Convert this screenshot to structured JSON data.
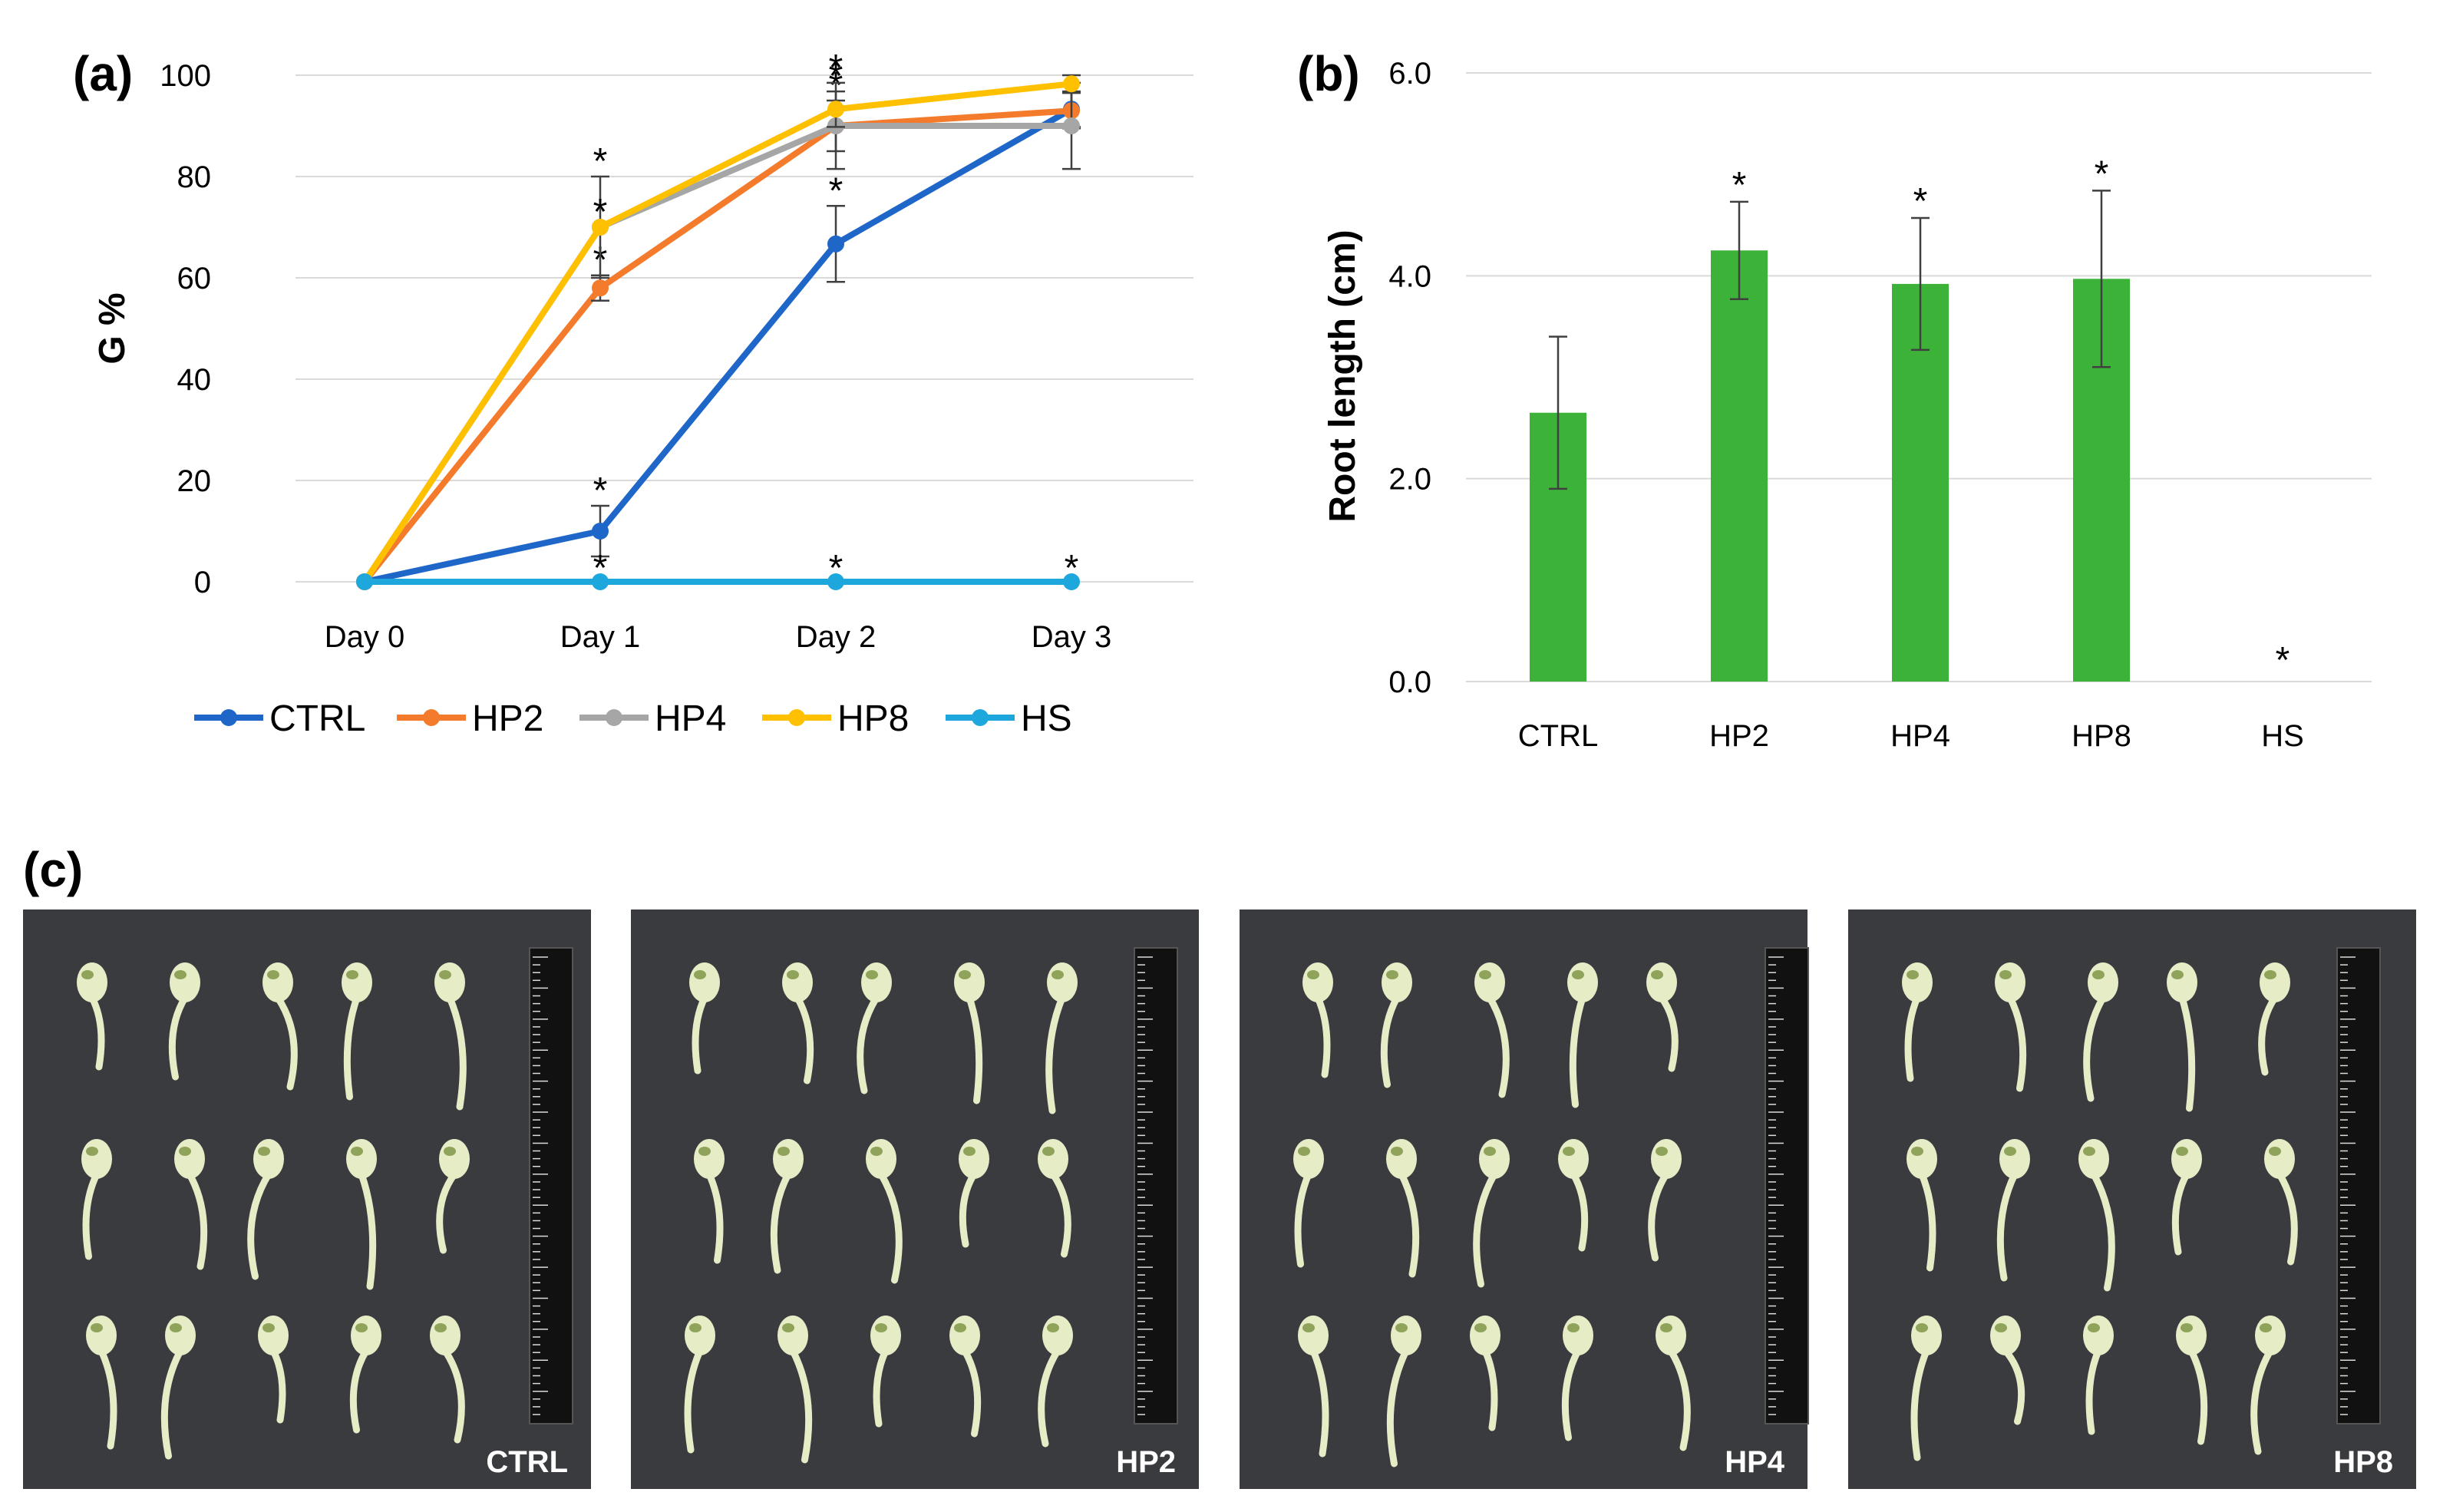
{
  "panels": {
    "a": "(a)",
    "b": "(b)",
    "c": "(c)"
  },
  "chart_data": [
    {
      "type": "line",
      "ylabel": "G %",
      "xlabel": "",
      "x": [
        "Day 0",
        "Day 1",
        "Day 2",
        "Day 3"
      ],
      "ylim": [
        0,
        100
      ],
      "yticks": [
        "0",
        "20",
        "40",
        "60",
        "80",
        "100"
      ],
      "grid": true,
      "legend": "bottom",
      "series": [
        {
          "name": "CTRL",
          "color": "#1f66c9",
          "values": [
            0,
            10,
            66.7,
            93.3
          ],
          "errors": [
            0,
            5,
            7.5,
            3.5
          ],
          "significant": [
            false,
            true,
            true,
            false
          ]
        },
        {
          "name": "HP2",
          "color": "#f47b2c",
          "values": [
            0,
            58,
            90,
            93
          ],
          "errors": [
            0,
            2.5,
            5,
            3.5
          ],
          "significant": [
            false,
            true,
            true,
            false
          ]
        },
        {
          "name": "HP4",
          "color": "#a6a6a6",
          "values": [
            0,
            70,
            90,
            90
          ],
          "errors": [
            0,
            10,
            8.5,
            8.5
          ],
          "significant": [
            false,
            true,
            true,
            false
          ]
        },
        {
          "name": "HP8",
          "color": "#ffc000",
          "values": [
            0,
            70,
            93.3,
            98.3
          ],
          "errors": [
            0,
            0,
            3.5,
            1.7
          ],
          "significant": [
            false,
            true,
            true,
            false
          ]
        },
        {
          "name": "HS",
          "color": "#1ea7dc",
          "values": [
            0,
            0,
            0,
            0
          ],
          "errors": [
            0,
            0,
            0,
            0
          ],
          "significant": [
            false,
            true,
            true,
            true
          ]
        }
      ]
    },
    {
      "type": "bar",
      "ylabel": "Root length (cm)",
      "xlabel": "",
      "categories": [
        "CTRL",
        "HP2",
        "HP4",
        "HP8",
        "HS"
      ],
      "values": [
        2.65,
        4.25,
        3.92,
        3.97,
        0
      ],
      "errors": [
        0.75,
        0.48,
        0.65,
        0.87,
        0
      ],
      "significant": [
        false,
        true,
        true,
        true,
        true
      ],
      "ylim": [
        0,
        6
      ],
      "yticks": [
        "0.0",
        "2.0",
        "4.0",
        "6.0"
      ],
      "grid": true,
      "color": "#3cb239"
    }
  ],
  "photos": {
    "labels": [
      "CTRL",
      "HP2",
      "HP4",
      "HP8"
    ],
    "background": "#3a3b3f",
    "seedling_color": "#e6ecc6"
  }
}
